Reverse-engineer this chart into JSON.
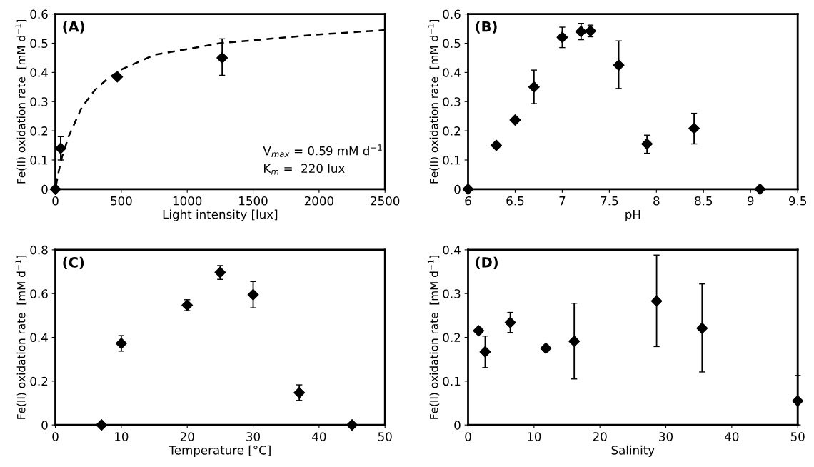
{
  "chart_data": [
    {
      "type": "scatter",
      "xlabel": "Light intensity [lux]",
      "ylabel": "Fe(II) oxidation rate  [mM d$^{−1}$]",
      "annotations": [
        "(A)",
        "V$_{max}$ = 0.59 mM d$^{−1}$",
        "K$_{m}$ =  220 lux"
      ],
      "xlim": [
        0,
        2500
      ],
      "xticks": [
        0,
        500,
        1000,
        1500,
        2000,
        2500
      ],
      "ylim": [
        0,
        0.6
      ],
      "yticks": [
        0,
        0.1,
        0.2,
        0.3,
        0.4,
        0.5,
        0.6
      ],
      "grid": false,
      "legend": false,
      "marker": "diamond",
      "series": [
        {
          "type": "scatter",
          "color": "#000000",
          "x": [
            0,
            40,
            470,
            1265
          ],
          "values": [
            0,
            0.14,
            0.385,
            0.45
          ],
          "errors": [
            null,
            [
              0.1,
              0.18
            ],
            null,
            [
              0.39,
              0.515
            ]
          ]
        },
        {
          "type": "line",
          "color": "#000000",
          "line_style": "dashed",
          "marker": "none",
          "x": [
            5,
            25,
            50,
            100,
            200,
            300,
            400,
            500,
            750,
            1000,
            1250,
            1500,
            2000,
            2500
          ],
          "values": [
            0.013,
            0.06,
            0.11,
            0.18,
            0.28,
            0.34,
            0.38,
            0.41,
            0.46,
            0.48,
            0.5,
            0.51,
            0.53,
            0.545
          ]
        }
      ]
    },
    {
      "type": "scatter",
      "xlabel": "pH",
      "ylabel": "Fe(II) oxidation rate  [mM d$^{−1}$]",
      "annotations": [
        "(B)"
      ],
      "xlim": [
        6,
        9.5
      ],
      "xticks": [
        6,
        6.5,
        7,
        7.5,
        8,
        8.5,
        9,
        9.5
      ],
      "ylim": [
        0,
        0.6
      ],
      "yticks": [
        0,
        0.1,
        0.2,
        0.3,
        0.4,
        0.5,
        0.6
      ],
      "grid": false,
      "legend": false,
      "marker": "diamond",
      "series": [
        {
          "type": "scatter",
          "color": "#000000",
          "x": [
            6.0,
            6.3,
            6.5,
            6.7,
            7.0,
            7.2,
            7.3,
            7.6,
            7.9,
            8.4,
            9.1
          ],
          "values": [
            0,
            0.15,
            0.237,
            0.35,
            0.52,
            0.54,
            0.542,
            0.425,
            0.155,
            0.208,
            0
          ],
          "errors": [
            null,
            null,
            null,
            [
              0.293,
              0.408
            ],
            [
              0.485,
              0.555
            ],
            [
              0.512,
              0.568
            ],
            [
              0.522,
              0.562
            ],
            [
              0.345,
              0.508
            ],
            [
              0.123,
              0.185
            ],
            [
              0.155,
              0.26
            ],
            null
          ]
        }
      ]
    },
    {
      "type": "scatter",
      "xlabel": "Temperature [°C]",
      "ylabel": "Fe(II) oxidation rate  [mM d$^{−1}$]",
      "annotations": [
        "(C)"
      ],
      "xlim": [
        0,
        50
      ],
      "xticks": [
        0,
        10,
        20,
        30,
        40,
        50
      ],
      "ylim": [
        0,
        0.8
      ],
      "yticks": [
        0,
        0.2,
        0.4,
        0.6,
        0.8
      ],
      "grid": false,
      "legend": false,
      "marker": "diamond",
      "series": [
        {
          "type": "scatter",
          "color": "#000000",
          "x": [
            7,
            10,
            20,
            25,
            30,
            37,
            45
          ],
          "values": [
            0,
            0.372,
            0.547,
            0.697,
            0.595,
            0.147,
            0
          ],
          "errors": [
            null,
            [
              0.337,
              0.408
            ],
            [
              0.522,
              0.572
            ],
            [
              0.665,
              0.728
            ],
            [
              0.535,
              0.655
            ],
            [
              0.112,
              0.183
            ],
            null
          ]
        }
      ]
    },
    {
      "type": "scatter",
      "xlabel": "Salinity",
      "ylabel": "Fe(II) oxidation rate  [mM d$^{−1}$]",
      "annotations": [
        "(D)"
      ],
      "xlim": [
        0,
        50
      ],
      "xticks": [
        0,
        10,
        20,
        30,
        40,
        50
      ],
      "ylim": [
        0,
        0.4
      ],
      "yticks": [
        0,
        0.1,
        0.2,
        0.3,
        0.4
      ],
      "grid": false,
      "legend": false,
      "marker": "diamond",
      "series": [
        {
          "type": "scatter",
          "color": "#000000",
          "x": [
            1.6,
            2.6,
            6.4,
            11.8,
            16.1,
            28.6,
            35.5,
            50
          ],
          "values": [
            0.215,
            0.167,
            0.234,
            0.175,
            0.191,
            0.283,
            0.221,
            0.055
          ],
          "errors": [
            [
              0.208,
              0.222
            ],
            [
              0.131,
              0.203
            ],
            [
              0.211,
              0.257
            ],
            [
              0.168,
              0.182
            ],
            [
              0.105,
              0.278
            ],
            [
              0.179,
              0.388
            ],
            [
              0.121,
              0.322
            ],
            [
              0,
              0.113
            ]
          ]
        }
      ]
    }
  ]
}
